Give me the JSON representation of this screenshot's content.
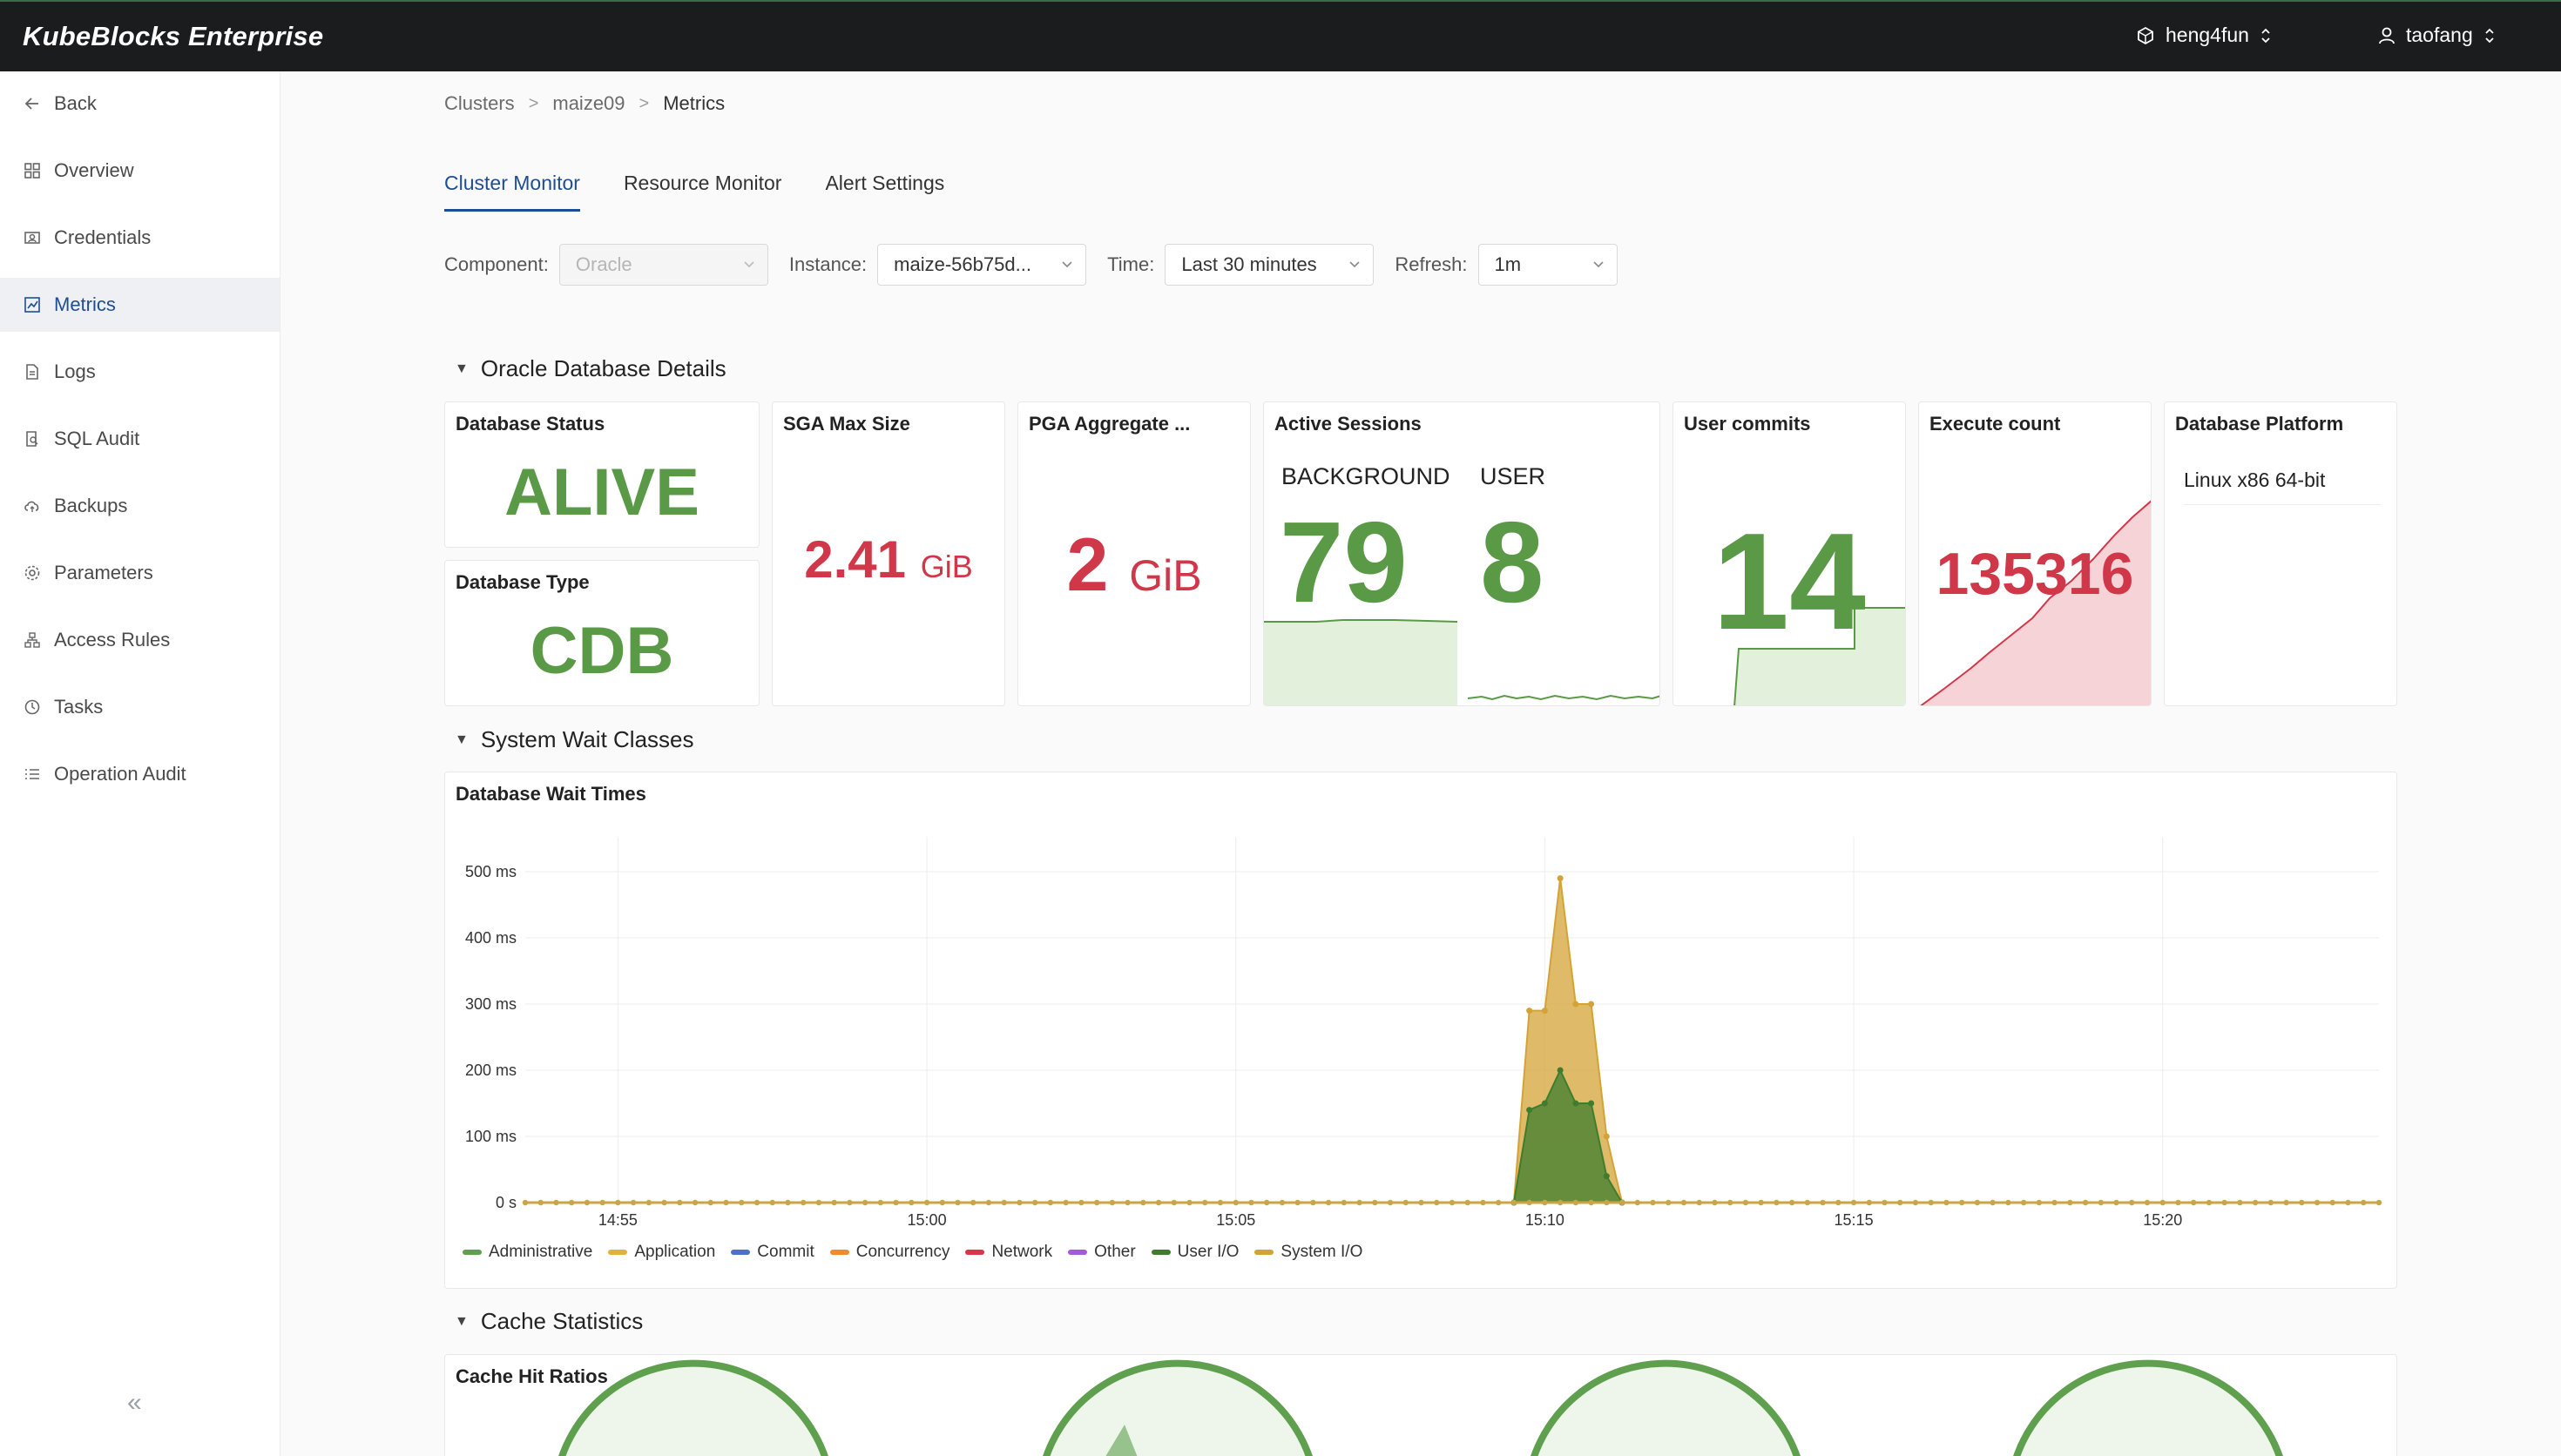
{
  "app": {
    "brand": "KubeBlocks Enterprise"
  },
  "topbar": {
    "org": "heng4fun",
    "user": "taofang"
  },
  "sidebar": {
    "items": [
      {
        "label": "Back",
        "icon": "arrow-left-icon"
      },
      {
        "label": "Overview",
        "icon": "grid-icon"
      },
      {
        "label": "Credentials",
        "icon": "credentials-icon"
      },
      {
        "label": "Metrics",
        "icon": "chart-icon",
        "active": true
      },
      {
        "label": "Logs",
        "icon": "file-icon"
      },
      {
        "label": "SQL Audit",
        "icon": "audit-icon"
      },
      {
        "label": "Backups",
        "icon": "cloud-icon"
      },
      {
        "label": "Parameters",
        "icon": "gear-icon"
      },
      {
        "label": "Access Rules",
        "icon": "network-icon"
      },
      {
        "label": "Tasks",
        "icon": "clock-icon"
      },
      {
        "label": "Operation Audit",
        "icon": "list-icon"
      }
    ],
    "collapse": "«"
  },
  "breadcrumb": {
    "items": [
      "Clusters",
      "maize09",
      "Metrics"
    ]
  },
  "tabs": [
    "Cluster Monitor",
    "Resource Monitor",
    "Alert Settings"
  ],
  "filters": {
    "component_label": "Component",
    "component_value": "Oracle",
    "instance_label": "Instance",
    "instance_value": "maize-56b75d...",
    "time_label": "Time",
    "time_value": "Last 30 minutes",
    "refresh_label": "Refresh",
    "refresh_value": "1m"
  },
  "details": {
    "section_title": "Oracle Database Details",
    "status_title": "Database Status",
    "status_value": "ALIVE",
    "type_title": "Database Type",
    "type_value": "CDB",
    "sga_title": "SGA Max Size",
    "sga_value": "2.41",
    "sga_unit": "GiB",
    "pga_title": "PGA Aggregate ...",
    "pga_value": "2",
    "pga_unit": "GiB",
    "sessions_title": "Active Sessions",
    "background_label": "BACKGROUND",
    "background_value": "79",
    "user_label": "USER",
    "user_value": "8",
    "commits_title": "User commits",
    "commits_value": "14",
    "exec_title": "Execute count",
    "exec_value": "135316",
    "platform_title": "Database Platform",
    "platform_value": "Linux x86 64-bit"
  },
  "wait": {
    "section_title": "System Wait Classes",
    "panel_title": "Database Wait Times"
  },
  "chart_data": {
    "type": "area",
    "title": "Database Wait Times",
    "xlabel": "",
    "ylabel": "",
    "ylim": [
      0,
      500
    ],
    "y_ticks": [
      "0 s",
      "100 ms",
      "200 ms",
      "300 ms",
      "400 ms",
      "500 ms"
    ],
    "x_ticks": [
      "14:55",
      "15:00",
      "15:05",
      "15:10",
      "15:15",
      "15:20"
    ],
    "x_start": "14:53:30",
    "x_end": "15:23:30",
    "grid": true,
    "legend_position": "bottom",
    "series": [
      {
        "name": "Administrative",
        "color": "#5fa04e"
      },
      {
        "name": "Application",
        "color": "#e0b43a"
      },
      {
        "name": "Commit",
        "color": "#4a72c8"
      },
      {
        "name": "Concurrency",
        "color": "#f08a2c"
      },
      {
        "name": "Network",
        "color": "#d9364a"
      },
      {
        "name": "Other",
        "color": "#a55ad8"
      },
      {
        "name": "User I/O",
        "color": "#3e7d2e",
        "points": [
          [
            "15:09:30",
            0
          ],
          [
            "15:09:45",
            140
          ],
          [
            "15:10",
            150
          ],
          [
            "15:10:15",
            200
          ],
          [
            "15:10:30",
            150
          ],
          [
            "15:10:45",
            150
          ],
          [
            "15:11",
            40
          ],
          [
            "15:11:15",
            0
          ]
        ]
      },
      {
        "name": "System I/O",
        "color": "#d4a336",
        "points": [
          [
            "15:09:30",
            0
          ],
          [
            "15:09:45",
            290
          ],
          [
            "15:10",
            290
          ],
          [
            "15:10:15",
            490
          ],
          [
            "15:10:30",
            300
          ],
          [
            "15:10:45",
            300
          ],
          [
            "15:11",
            100
          ],
          [
            "15:11:15",
            0
          ]
        ]
      }
    ]
  },
  "cache": {
    "section_title": "Cache Statistics",
    "panel_title": "Cache Hit Ratios"
  }
}
